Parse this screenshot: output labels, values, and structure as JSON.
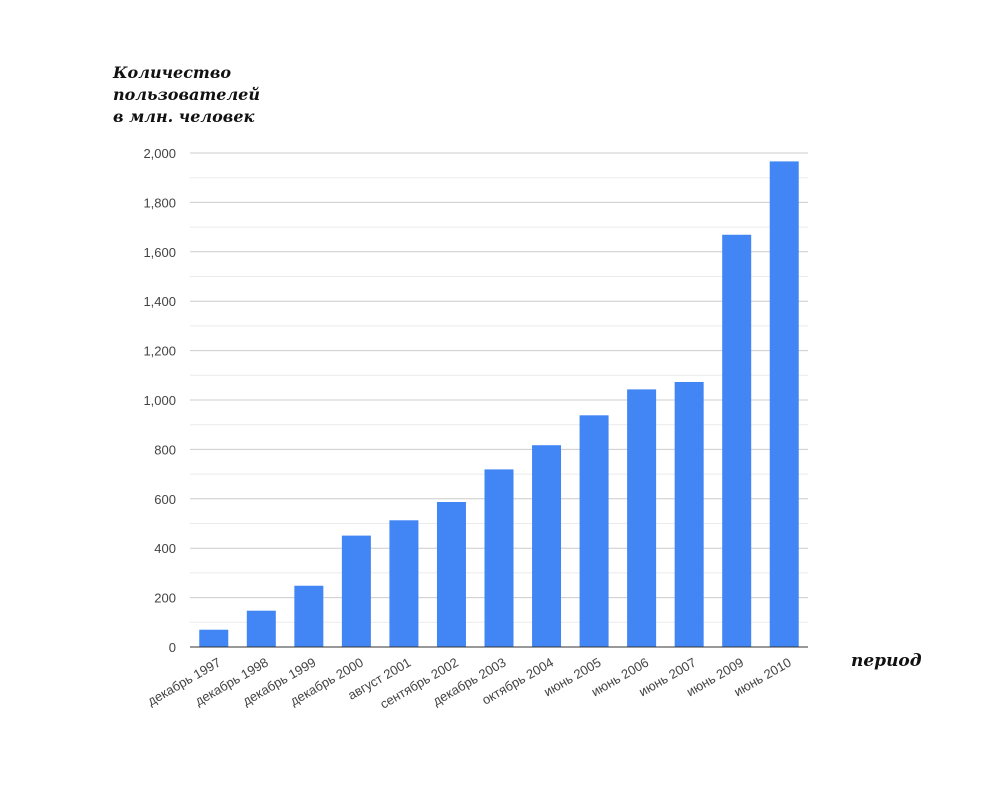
{
  "chart_data": {
    "type": "bar",
    "title": "",
    "ylabel_lines": [
      "Количество",
      "пользователей",
      "в млн. человек"
    ],
    "xlabel": "период",
    "categories": [
      "декабрь 1997",
      "декабрь 1998",
      "декабрь 1999",
      "декабрь 2000",
      "август 2001",
      "сентябрь 2002",
      "декабрь 2003",
      "октябрь 2004",
      "июнь 2005",
      "июнь 2006",
      "июнь 2007",
      "июнь 2009",
      "июнь 2010"
    ],
    "values": [
      70,
      147,
      248,
      451,
      513,
      587,
      719,
      817,
      938,
      1043,
      1073,
      1669,
      1966
    ],
    "ylim": [
      0,
      2000
    ],
    "yticks": [
      "0",
      "200",
      "400",
      "600",
      "800",
      "1,000",
      "1,200",
      "1,400",
      "1,600",
      "1,800",
      "2,000"
    ],
    "grid": true,
    "bar_color": "#4285f4"
  }
}
